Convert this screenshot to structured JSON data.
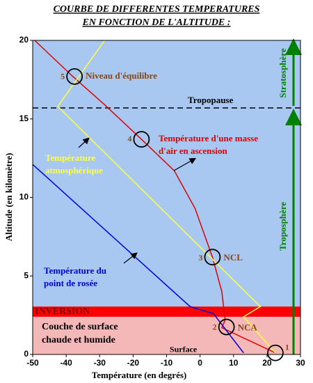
{
  "chart_data": {
    "type": "line",
    "title": [
      "COURBE DE DIFFERENTES TEMPERATURES",
      "EN FONCTION DE L'ALTITUDE :"
    ],
    "xlabel": "Température (en degrés)",
    "ylabel": "Altitude (en kilomètre)",
    "xlim": [
      -50,
      30
    ],
    "ylim": [
      0,
      20
    ],
    "xticks": [
      -50,
      -40,
      -30,
      -20,
      -10,
      0,
      10,
      20,
      30
    ],
    "yticks": [
      0,
      5,
      10,
      15,
      20
    ],
    "background": "#a8c8f2",
    "series": [
      {
        "label": [
          "Température d'une masse",
          "d'air en ascension"
        ],
        "color": "#e00000",
        "x": [
          -49.4,
          -38,
          -28.5,
          -17.5,
          -7.7,
          -1.5,
          3.7,
          6.5,
          7.5,
          6.5,
          22.5
        ],
        "values": [
          20,
          17.7,
          15.9,
          13.7,
          11.7,
          9.3,
          6.2,
          4,
          2.2,
          1.7,
          0.1
        ]
      },
      {
        "label": [
          "Température",
          "atmosphérique"
        ],
        "color": "#ffff40",
        "x": [
          -28.5,
          -42.5,
          18,
          13,
          22.5
        ],
        "values": [
          20,
          15.8,
          3.05,
          2.4,
          0.1
        ]
      },
      {
        "label": [
          "Température du",
          "point de rosée"
        ],
        "color": "#0000e0",
        "x": [
          -50,
          -3,
          4,
          13
        ],
        "values": [
          12.1,
          3.05,
          2.6,
          0.1
        ]
      }
    ],
    "zones": [
      {
        "label": [
          "Couche de surface",
          "chaude et humide"
        ],
        "from": 0,
        "to": 2.4,
        "color": "#f5b8b8"
      },
      {
        "label": [
          "INVERSION"
        ],
        "from": 2.4,
        "to": 3.05,
        "color": "#ff0000"
      }
    ],
    "tropopause": {
      "label": "Tropopause",
      "y": 15.7
    },
    "layers": [
      "Stratosphère",
      "Troposphère"
    ],
    "points": [
      {
        "number": "1",
        "x": 22.5,
        "y": 0.1,
        "label": "Surface"
      },
      {
        "number": "2",
        "x": 7.9,
        "y": 1.75,
        "label": "NCA"
      },
      {
        "number": "3",
        "x": 3.7,
        "y": 6.2,
        "label": "NCL"
      },
      {
        "number": "4",
        "x": -17.5,
        "y": 13.7
      },
      {
        "number": "5",
        "x": -37.5,
        "y": 17.7,
        "label": "Niveau d'équilibre"
      }
    ]
  }
}
